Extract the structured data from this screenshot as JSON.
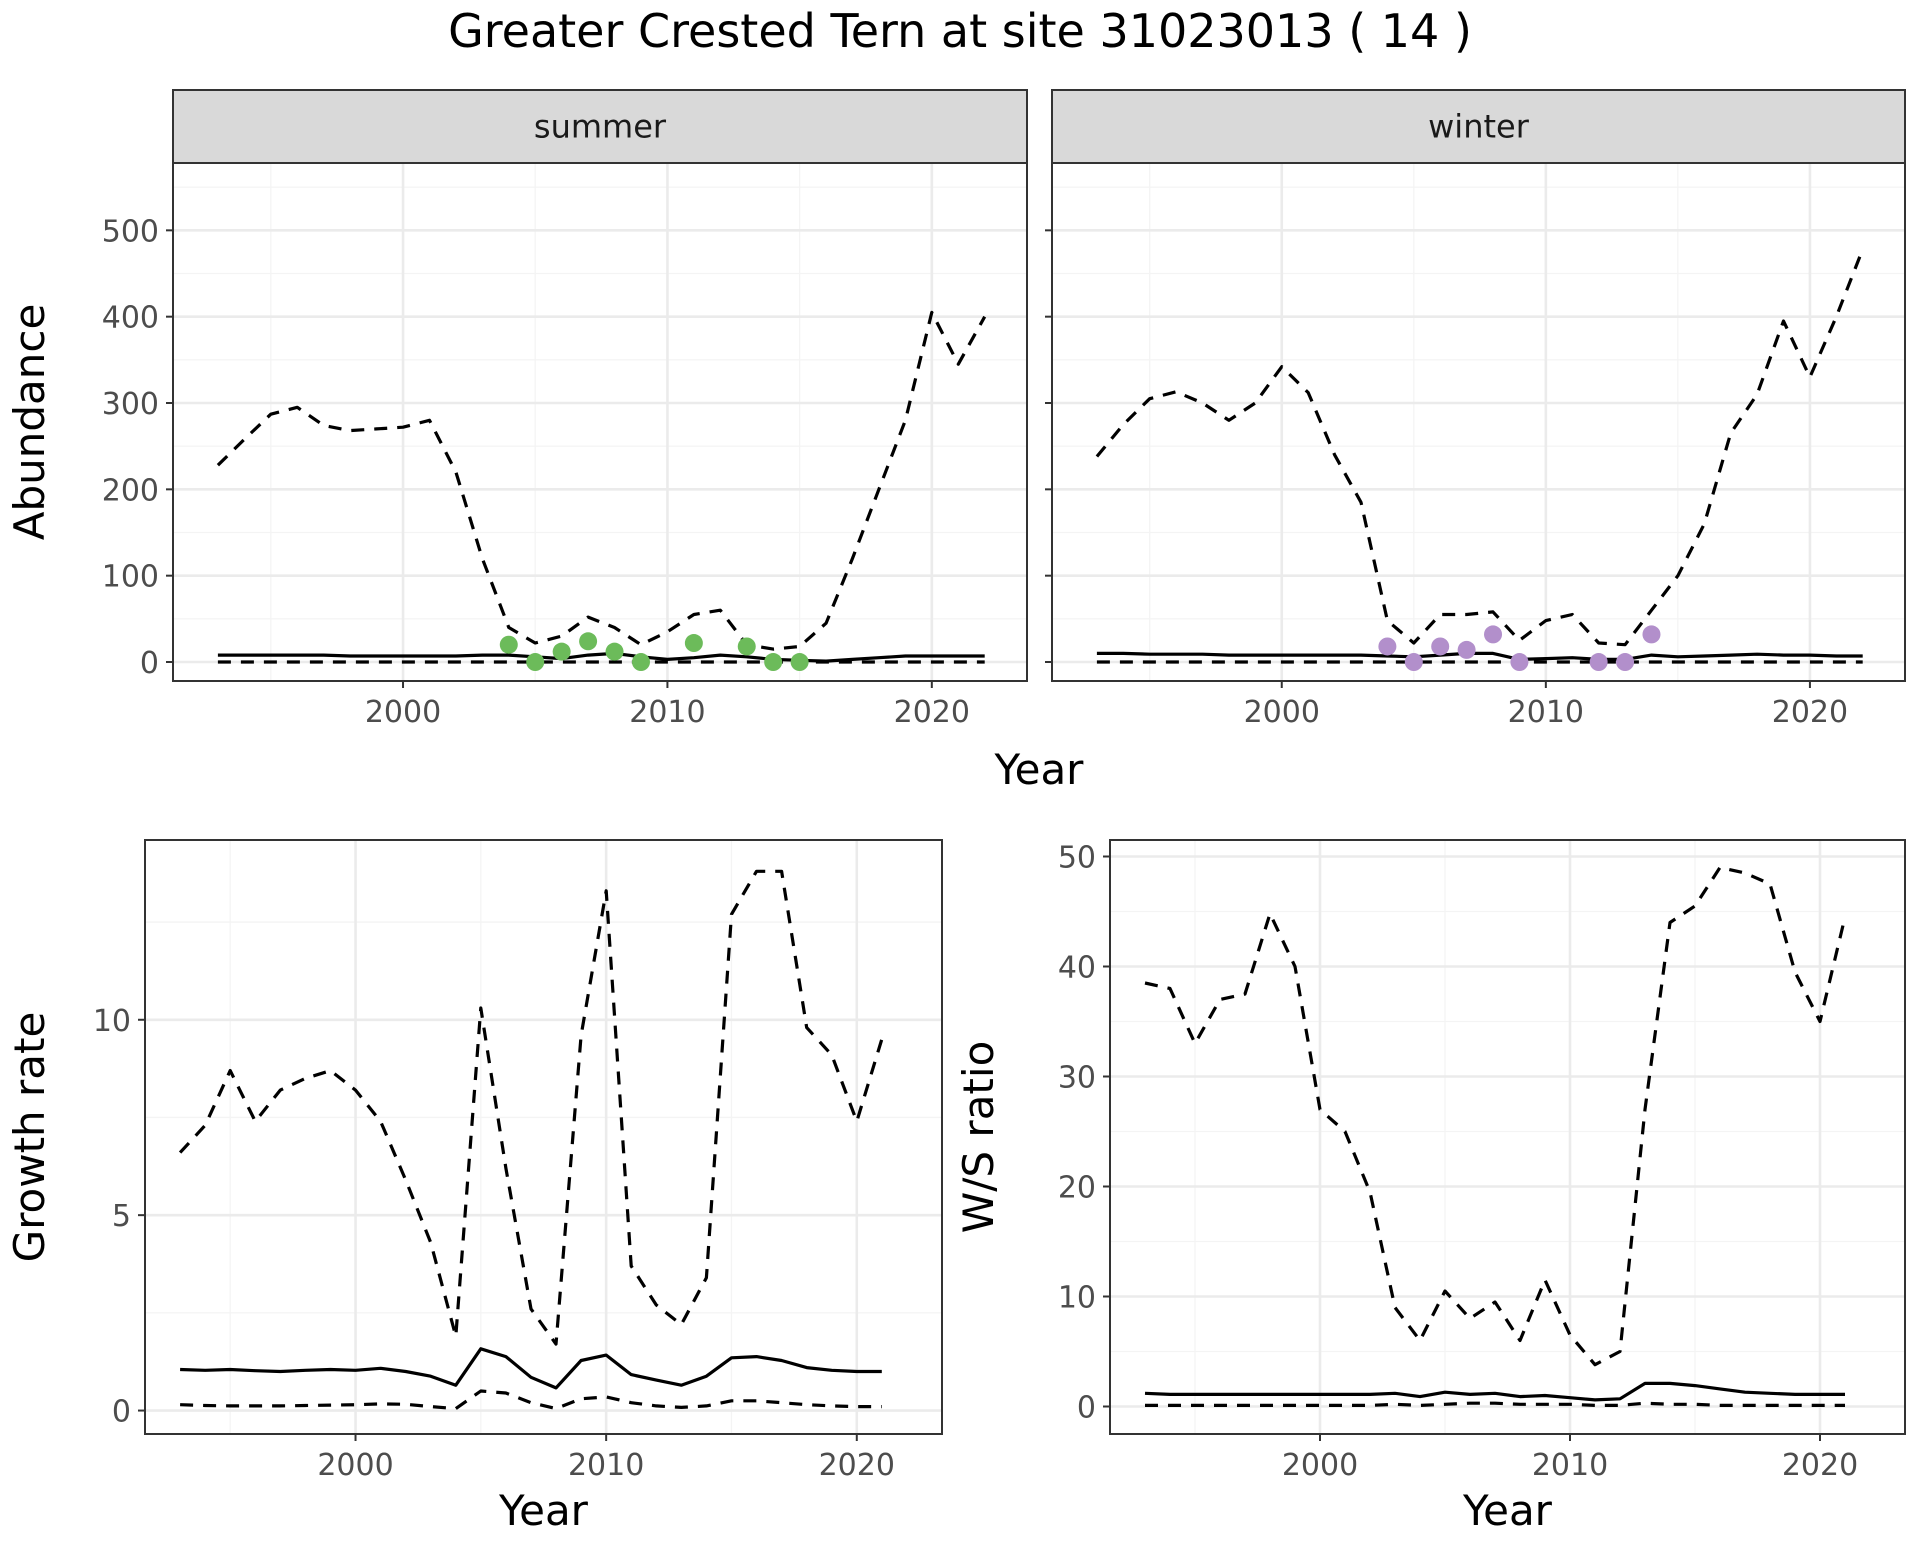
{
  "title": "Greater Crested Tern at site 31023013 ( 14 )",
  "colors": {
    "summer_points": "#6cbb5a",
    "winter_points": "#b28fcb",
    "line": "#000000",
    "grid_major": "#ebebeb",
    "grid_minor": "#f4f4f4",
    "strip_fill": "#d9d9d9",
    "panel_border": "#333333",
    "tick_text": "#4d4d4d"
  },
  "chart_data": [
    {
      "type": "line",
      "facet": "summer",
      "xlabel": "Year",
      "ylabel": "Abundance",
      "xlim": [
        1991.3,
        2023.6
      ],
      "ylim": [
        -22,
        578
      ],
      "xticks": [
        2000,
        2010,
        2020
      ],
      "yticks": [
        0,
        100,
        200,
        300,
        400,
        500
      ],
      "grid": true,
      "series": [
        {
          "style": "solid",
          "x": [
            1993,
            1994,
            1995,
            1996,
            1997,
            1998,
            1999,
            2000,
            2001,
            2002,
            2003,
            2004,
            2005,
            2006,
            2007,
            2008,
            2009,
            2010,
            2011,
            2012,
            2013,
            2014,
            2015,
            2016,
            2017,
            2018,
            2019,
            2020,
            2021,
            2022
          ],
          "y": [
            8,
            8,
            8,
            8,
            8,
            7,
            7,
            7,
            7,
            7,
            8,
            8,
            6,
            4,
            8,
            10,
            6,
            3,
            5,
            8,
            6,
            3,
            2,
            1,
            3,
            5,
            7,
            7,
            7,
            7
          ]
        },
        {
          "style": "dashed",
          "x": [
            1993,
            1994,
            1995,
            1996,
            1997,
            1998,
            1999,
            2000,
            2001,
            2002,
            2003,
            2004,
            2005,
            2006,
            2007,
            2008,
            2009,
            2010,
            2011,
            2012,
            2013,
            2014,
            2015,
            2016,
            2017,
            2018,
            2019,
            2020,
            2021,
            2022
          ],
          "y": [
            228,
            258,
            287,
            295,
            274,
            268,
            270,
            272,
            280,
            220,
            120,
            40,
            22,
            30,
            52,
            40,
            20,
            35,
            55,
            60,
            20,
            15,
            18,
            45,
            120,
            200,
            280,
            405,
            345,
            400
          ]
        },
        {
          "style": "dashed",
          "x": [
            1993,
            1994,
            1995,
            1996,
            1997,
            1998,
            1999,
            2000,
            2001,
            2002,
            2003,
            2004,
            2005,
            2006,
            2007,
            2008,
            2009,
            2010,
            2011,
            2012,
            2013,
            2014,
            2015,
            2016,
            2017,
            2018,
            2019,
            2020,
            2021,
            2022
          ],
          "y": [
            0,
            0,
            0,
            0,
            0,
            0,
            0,
            0,
            0,
            0,
            0,
            0,
            0,
            0,
            0,
            0,
            0,
            0,
            0,
            0,
            0,
            0,
            0,
            0,
            0,
            0,
            0,
            0,
            0,
            0
          ]
        },
        {
          "style": "points",
          "x": [
            2004,
            2005,
            2006,
            2007,
            2008,
            2009,
            2011,
            2013,
            2014,
            2015
          ],
          "y": [
            20,
            0,
            12,
            24,
            12,
            0,
            22,
            18,
            0,
            0
          ]
        }
      ]
    },
    {
      "type": "line",
      "facet": "winter",
      "xlabel": "Year",
      "ylabel": "Abundance",
      "xlim": [
        1991.3,
        2023.6
      ],
      "ylim": [
        -22,
        578
      ],
      "xticks": [
        2000,
        2010,
        2020
      ],
      "yticks": [
        0,
        100,
        200,
        300,
        400,
        500
      ],
      "grid": true,
      "series": [
        {
          "style": "solid",
          "x": [
            1993,
            1994,
            1995,
            1996,
            1997,
            1998,
            1999,
            2000,
            2001,
            2002,
            2003,
            2004,
            2005,
            2006,
            2007,
            2008,
            2009,
            2010,
            2011,
            2012,
            2013,
            2014,
            2015,
            2016,
            2017,
            2018,
            2019,
            2020,
            2021,
            2022
          ],
          "y": [
            10,
            10,
            9,
            9,
            9,
            8,
            8,
            8,
            8,
            8,
            8,
            7,
            6,
            8,
            10,
            10,
            3,
            4,
            5,
            3,
            3,
            8,
            6,
            7,
            8,
            9,
            8,
            8,
            7,
            7
          ]
        },
        {
          "style": "dashed",
          "x": [
            1993,
            1994,
            1995,
            1996,
            1997,
            1998,
            1999,
            2000,
            2001,
            2002,
            2003,
            2004,
            2005,
            2006,
            2007,
            2008,
            2009,
            2010,
            2011,
            2012,
            2013,
            2014,
            2015,
            2016,
            2017,
            2018,
            2019,
            2020,
            2021,
            2022
          ],
          "y": [
            238,
            275,
            305,
            313,
            300,
            280,
            300,
            342,
            312,
            240,
            185,
            48,
            22,
            55,
            55,
            58,
            25,
            48,
            55,
            22,
            20,
            60,
            100,
            160,
            265,
            310,
            395,
            330,
            400,
            478
          ]
        },
        {
          "style": "dashed",
          "x": [
            1993,
            1994,
            1995,
            1996,
            1997,
            1998,
            1999,
            2000,
            2001,
            2002,
            2003,
            2004,
            2005,
            2006,
            2007,
            2008,
            2009,
            2010,
            2011,
            2012,
            2013,
            2014,
            2015,
            2016,
            2017,
            2018,
            2019,
            2020,
            2021,
            2022
          ],
          "y": [
            0,
            0,
            0,
            0,
            0,
            0,
            0,
            0,
            0,
            0,
            0,
            0,
            0,
            0,
            0,
            0,
            0,
            0,
            0,
            0,
            0,
            0,
            0,
            0,
            0,
            0,
            0,
            0,
            0,
            0
          ]
        },
        {
          "style": "points",
          "x": [
            2004,
            2005,
            2006,
            2007,
            2008,
            2009,
            2012,
            2013,
            2014
          ],
          "y": [
            18,
            0,
            18,
            14,
            32,
            0,
            0,
            0,
            32
          ]
        }
      ]
    },
    {
      "type": "line",
      "xlabel": "Year",
      "ylabel": "Growth rate",
      "xlim": [
        1991.6,
        2023.4
      ],
      "ylim": [
        -0.6,
        14.6
      ],
      "xticks": [
        2000,
        2010,
        2020
      ],
      "yticks": [
        0,
        5,
        10
      ],
      "grid": true,
      "series": [
        {
          "style": "solid",
          "x": [
            1993,
            1994,
            1995,
            1996,
            1997,
            1998,
            1999,
            2000,
            2001,
            2002,
            2003,
            2004,
            2005,
            2006,
            2007,
            2008,
            2009,
            2010,
            2011,
            2012,
            2013,
            2014,
            2015,
            2016,
            2017,
            2018,
            2019,
            2020,
            2021
          ],
          "y": [
            1.05,
            1.03,
            1.05,
            1.02,
            1.0,
            1.03,
            1.05,
            1.03,
            1.08,
            1.0,
            0.88,
            0.65,
            1.58,
            1.38,
            0.85,
            0.58,
            1.28,
            1.42,
            0.92,
            0.78,
            0.65,
            0.88,
            1.35,
            1.38,
            1.28,
            1.1,
            1.03,
            1.0,
            1.0
          ]
        },
        {
          "style": "dashed",
          "x": [
            1993,
            1994,
            1995,
            1996,
            1997,
            1998,
            1999,
            2000,
            2001,
            2002,
            2003,
            2004,
            2005,
            2006,
            2007,
            2008,
            2009,
            2010,
            2011,
            2012,
            2013,
            2014,
            2015,
            2016,
            2017,
            2018,
            2019,
            2020,
            2021
          ],
          "y": [
            6.6,
            7.3,
            8.7,
            7.4,
            8.2,
            8.5,
            8.7,
            8.2,
            7.4,
            5.9,
            4.3,
            1.9,
            10.3,
            6.2,
            2.6,
            1.7,
            9.6,
            13.3,
            3.7,
            2.7,
            2.2,
            3.4,
            12.7,
            13.8,
            13.8,
            9.8,
            9.1,
            7.4,
            9.5
          ]
        },
        {
          "style": "dashed",
          "x": [
            1993,
            1994,
            1995,
            1996,
            1997,
            1998,
            1999,
            2000,
            2001,
            2002,
            2003,
            2004,
            2005,
            2006,
            2007,
            2008,
            2009,
            2010,
            2011,
            2012,
            2013,
            2014,
            2015,
            2016,
            2017,
            2018,
            2019,
            2020,
            2021
          ],
          "y": [
            0.15,
            0.13,
            0.12,
            0.12,
            0.12,
            0.13,
            0.14,
            0.15,
            0.17,
            0.16,
            0.1,
            0.05,
            0.5,
            0.45,
            0.2,
            0.05,
            0.3,
            0.35,
            0.2,
            0.12,
            0.08,
            0.12,
            0.25,
            0.25,
            0.2,
            0.15,
            0.12,
            0.1,
            0.1
          ]
        }
      ]
    },
    {
      "type": "line",
      "xlabel": "Year",
      "ylabel": "W/S ratio",
      "xlim": [
        1991.6,
        2023.4
      ],
      "ylim": [
        -2.5,
        51.5
      ],
      "xticks": [
        2000,
        2010,
        2020
      ],
      "yticks": [
        0,
        10,
        20,
        30,
        40,
        50
      ],
      "grid": true,
      "series": [
        {
          "style": "solid",
          "x": [
            1993,
            1994,
            1995,
            1996,
            1997,
            1998,
            1999,
            2000,
            2001,
            2002,
            2003,
            2004,
            2005,
            2006,
            2007,
            2008,
            2009,
            2010,
            2011,
            2012,
            2013,
            2014,
            2015,
            2016,
            2017,
            2018,
            2019,
            2020,
            2021
          ],
          "y": [
            1.2,
            1.1,
            1.1,
            1.1,
            1.1,
            1.1,
            1.1,
            1.1,
            1.1,
            1.1,
            1.2,
            0.9,
            1.3,
            1.1,
            1.2,
            0.9,
            1.0,
            0.8,
            0.6,
            0.7,
            2.1,
            2.1,
            1.9,
            1.6,
            1.3,
            1.2,
            1.1,
            1.1,
            1.1
          ]
        },
        {
          "style": "dashed",
          "x": [
            1993,
            1994,
            1995,
            1996,
            1997,
            1998,
            1999,
            2000,
            2001,
            2002,
            2003,
            2004,
            2005,
            2006,
            2007,
            2008,
            2009,
            2010,
            2011,
            2012,
            2013,
            2014,
            2015,
            2016,
            2017,
            2018,
            2019,
            2020,
            2021
          ],
          "y": [
            38.5,
            38.0,
            33.0,
            37.0,
            37.5,
            44.8,
            40.0,
            27.0,
            25.0,
            19.5,
            9.0,
            6.0,
            10.5,
            8.0,
            9.5,
            6.0,
            11.5,
            6.5,
            3.8,
            5.0,
            27.0,
            44.0,
            45.5,
            49.0,
            48.5,
            47.5,
            39.5,
            35.0,
            44.5
          ]
        },
        {
          "style": "dashed",
          "x": [
            1993,
            1994,
            1995,
            1996,
            1997,
            1998,
            1999,
            2000,
            2001,
            2002,
            2003,
            2004,
            2005,
            2006,
            2007,
            2008,
            2009,
            2010,
            2011,
            2012,
            2013,
            2014,
            2015,
            2016,
            2017,
            2018,
            2019,
            2020,
            2021
          ],
          "y": [
            0.1,
            0.1,
            0.1,
            0.1,
            0.1,
            0.1,
            0.1,
            0.1,
            0.1,
            0.1,
            0.2,
            0.1,
            0.2,
            0.3,
            0.3,
            0.2,
            0.2,
            0.2,
            0.1,
            0.1,
            0.3,
            0.2,
            0.2,
            0.1,
            0.1,
            0.1,
            0.1,
            0.1,
            0.1
          ]
        }
      ]
    }
  ]
}
